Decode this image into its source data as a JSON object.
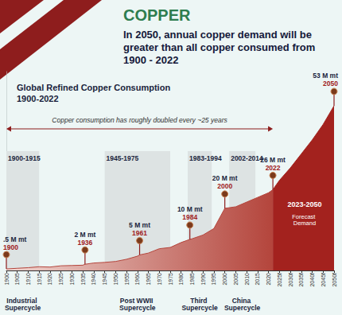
{
  "title": "COPPER",
  "subtitle": "In 2050, annual copper demand will be greater than all copper consumed from 1900 - 2022",
  "chart_data": {
    "type": "area",
    "title": "Global Refined Copper Consumption 1900-2022",
    "x": [
      1900,
      1905,
      1910,
      1915,
      1920,
      1925,
      1930,
      1935,
      1936,
      1940,
      1945,
      1950,
      1955,
      1960,
      1961,
      1965,
      1970,
      1975,
      1980,
      1984,
      1985,
      1990,
      1995,
      2000,
      2005,
      2010,
      2015,
      2020,
      2022,
      2025,
      2030,
      2035,
      2040,
      2045,
      2050
    ],
    "values": [
      0.5,
      0.7,
      0.9,
      1.2,
      1.1,
      1.5,
      1.6,
      1.7,
      2,
      2.4,
      2.6,
      2.9,
      3.6,
      4.6,
      5,
      5.6,
      7,
      7.4,
      9,
      10,
      10.2,
      11.4,
      13.5,
      20,
      20.5,
      22,
      23.5,
      25,
      26,
      29,
      33,
      37.5,
      42,
      47,
      53
    ],
    "color": "#b4453c",
    "xlim": [
      1900,
      2050
    ],
    "xticks": [
      1900,
      1905,
      1910,
      1915,
      1920,
      1925,
      1930,
      1935,
      1940,
      1945,
      1950,
      1955,
      1960,
      1965,
      1970,
      1975,
      1980,
      1985,
      1990,
      1995,
      2000,
      2005,
      2010,
      2015,
      2020,
      {
        "value": 2025,
        "label": "2025f"
      },
      {
        "value": 2030,
        "label": "2030f"
      },
      {
        "value": 2035,
        "label": "2035f"
      },
      {
        "value": 2040,
        "label": "2040f"
      },
      {
        "value": 2045,
        "label": "2045f"
      },
      {
        "value": 2050,
        "label": "2050f"
      }
    ],
    "ylim": [
      0,
      64
    ],
    "yticks": [],
    "tick_labels": "x",
    "grid": false,
    "forecast": {
      "from": 2023,
      "to": 2050,
      "label": "2023-2050",
      "text": "Forecast Demand",
      "color": "#a3221e"
    },
    "trend": {
      "from": 1900,
      "to": 2022,
      "text": "Copper consumption has roughly doubled every ~25 years"
    },
    "periods": [
      {
        "from": 1900,
        "to": 1915,
        "label": "1900-1915",
        "name": "Industrial Supercycle"
      },
      {
        "from": 1945,
        "to": 1975,
        "label": "1945-1975",
        "name": "Post WWII Supercycle"
      },
      {
        "from": 1983,
        "to": 1994,
        "label": "1983-1994",
        "name": "Third Supercycle"
      },
      {
        "from": 2002,
        "to": 2014,
        "label": "2002-2014",
        "name": "China Supercycle"
      }
    ],
    "annotations": [
      {
        "x": 1900,
        "value": 0.5,
        "label": ".5 M mt",
        "x_label": "1900"
      },
      {
        "x": 1936,
        "value": 2,
        "label": "2 M mt",
        "x_label": "1936"
      },
      {
        "x": 1961,
        "value": 5,
        "label": "5 M mt",
        "x_label": "1961"
      },
      {
        "x": 1984,
        "value": 10,
        "label": "10 M mt",
        "x_label": "1984"
      },
      {
        "x": 2000,
        "value": 20,
        "label": "20 M mt",
        "x_label": "2000"
      },
      {
        "x": 2022,
        "value": 26,
        "label": "26 M mt",
        "x_label": "2022"
      },
      {
        "x": 2050,
        "value": 53,
        "label": "53 M mt",
        "x_label": "2050"
      }
    ]
  }
}
